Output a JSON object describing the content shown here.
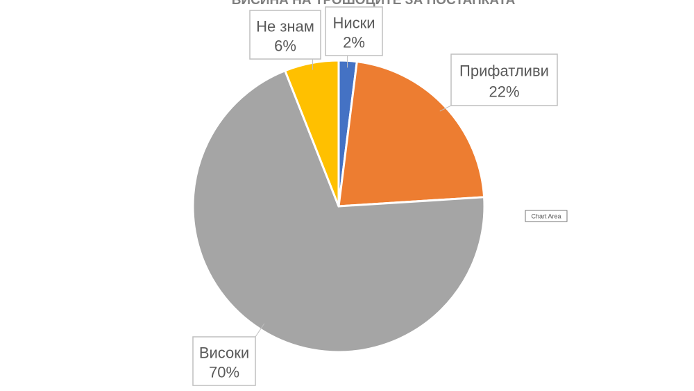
{
  "chart_data": {
    "type": "pie",
    "title": "ВИСИНА НА ТРОШОЦИТЕ ЗА ПОСТАПКАТА",
    "categories": [
      "Ниски",
      "Прифатливи",
      "Високи",
      "Не знам"
    ],
    "values": [
      2,
      22,
      70,
      6
    ],
    "value_labels": [
      "2%",
      "22%",
      "70%",
      "6%"
    ],
    "colors": [
      "#4472c4",
      "#ed7d31",
      "#a5a5a5",
      "#ffc000"
    ],
    "tooltip": "Chart Area"
  }
}
